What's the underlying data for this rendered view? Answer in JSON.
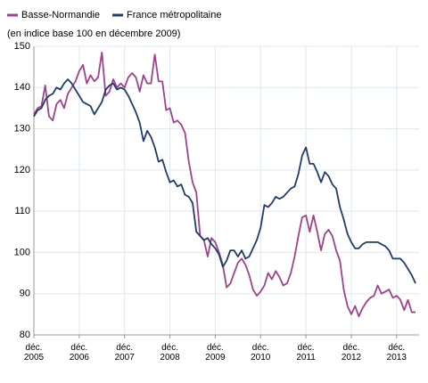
{
  "chart_data": {
    "type": "line",
    "subtitle": "(en indice base 100 en décembre 2009)",
    "categories": [
      "déc. 2005",
      null,
      null,
      null,
      null,
      null,
      null,
      null,
      null,
      null,
      null,
      null,
      "déc. 2006",
      null,
      null,
      null,
      null,
      null,
      null,
      null,
      null,
      null,
      null,
      null,
      "déc. 2007",
      null,
      null,
      null,
      null,
      null,
      null,
      null,
      null,
      null,
      null,
      null,
      "déc. 2008",
      null,
      null,
      null,
      null,
      null,
      null,
      null,
      null,
      null,
      null,
      null,
      "déc. 2009",
      null,
      null,
      null,
      null,
      null,
      null,
      null,
      null,
      null,
      null,
      null,
      "déc. 2010",
      null,
      null,
      null,
      null,
      null,
      null,
      null,
      null,
      null,
      null,
      null,
      "déc. 2011",
      null,
      null,
      null,
      null,
      null,
      null,
      null,
      null,
      null,
      null,
      null,
      "déc. 2012",
      null,
      null,
      null,
      null,
      null,
      null,
      null,
      null,
      null,
      null,
      null,
      "déc. 2013",
      null,
      null,
      null,
      null,
      null
    ],
    "series": [
      {
        "name": "Basse-Normandie",
        "color": "#a0418e",
        "values": [
          133.5,
          135,
          135.5,
          140.5,
          133,
          132,
          136,
          137,
          135,
          138.5,
          140,
          141.5,
          144,
          145.5,
          141,
          143,
          141.5,
          142.5,
          148.5,
          138,
          139,
          142,
          140,
          141,
          140,
          142.5,
          143.5,
          142.5,
          139,
          143,
          141,
          141,
          148,
          141.5,
          141.5,
          134.5,
          135,
          131.5,
          132,
          131,
          129,
          122,
          117,
          114.5,
          104,
          103,
          99,
          103.5,
          102.5,
          100,
          97,
          91.5,
          92.5,
          95,
          97.5,
          98.5,
          97,
          94.5,
          91,
          89.5,
          90.5,
          92,
          95,
          93.5,
          95.5,
          94,
          92,
          92.5,
          95,
          99,
          104,
          108.5,
          109,
          105,
          109,
          105,
          100.5,
          104.5,
          105.5,
          104,
          100.5,
          98,
          91,
          87,
          85,
          87,
          84.5,
          86.5,
          88,
          89,
          89.5,
          92,
          90,
          90.5,
          91,
          89,
          89.5,
          88.5,
          86,
          88.5,
          85.5,
          85.5
        ]
      },
      {
        "name": "France métropolitaine",
        "color": "#1f3d68",
        "values": [
          133,
          134.5,
          135,
          137,
          138,
          138.5,
          140,
          139.5,
          141,
          142,
          141,
          139.5,
          138,
          136.5,
          136,
          135.5,
          133.5,
          135,
          136.5,
          139.5,
          140.5,
          141,
          139.5,
          140,
          139.5,
          138,
          136,
          134,
          131.5,
          127,
          129.5,
          128,
          125.5,
          122,
          122.5,
          119.5,
          117,
          117.5,
          116,
          116.5,
          114,
          113.5,
          112,
          105,
          104,
          103,
          103.5,
          102,
          101,
          99.5,
          96.5,
          98,
          100.5,
          100.5,
          99,
          100.5,
          98.5,
          99,
          101,
          103,
          106,
          111.5,
          111,
          112,
          113.5,
          113,
          113.5,
          114.5,
          115.5,
          116,
          119,
          123.5,
          125.5,
          121.5,
          121.5,
          119.5,
          117,
          119.5,
          118.5,
          116.5,
          115.5,
          111,
          108,
          104.5,
          102.5,
          101,
          101,
          102,
          102.5,
          102.5,
          102.5,
          102.5,
          102,
          101.5,
          100.5,
          98.5,
          98.5,
          98.5,
          97.5,
          96,
          94.5,
          92.5
        ]
      }
    ],
    "ylim": [
      80,
      150
    ],
    "yticks": [
      80,
      90,
      100,
      110,
      120,
      130,
      140,
      150
    ],
    "grid": true
  }
}
